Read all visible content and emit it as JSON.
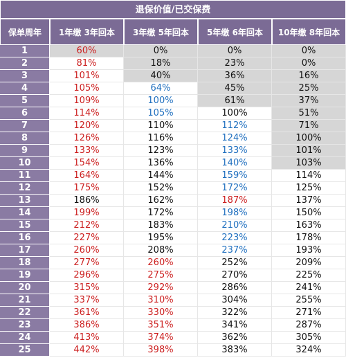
{
  "title": "退保价值/已交保费",
  "headers": [
    "保单周年",
    "1年缴 3年回本",
    "3年缴 5年回本",
    "5年缴 6年回本",
    "10年缴 8年回本"
  ],
  "colors": {
    "header_bg": "#7b6b95",
    "year_bg": "#8a7ba3",
    "gray_cell": "#d6d6d6",
    "red": "#cc1f1f",
    "blue": "#1f6fbf",
    "black": "#111111"
  },
  "rows": [
    {
      "year": "1",
      "v": [
        "60%",
        "0%",
        "0%",
        "0%"
      ],
      "c": [
        "red",
        "black",
        "black",
        "black"
      ],
      "g": [
        1,
        1,
        1,
        1
      ]
    },
    {
      "year": "2",
      "v": [
        "81%",
        "18%",
        "23%",
        "0%"
      ],
      "c": [
        "red",
        "black",
        "black",
        "black"
      ],
      "g": [
        0,
        1,
        1,
        1
      ]
    },
    {
      "year": "3",
      "v": [
        "101%",
        "40%",
        "36%",
        "16%"
      ],
      "c": [
        "red",
        "black",
        "black",
        "black"
      ],
      "g": [
        0,
        1,
        1,
        1
      ]
    },
    {
      "year": "4",
      "v": [
        "105%",
        "64%",
        "45%",
        "25%"
      ],
      "c": [
        "red",
        "blue",
        "black",
        "black"
      ],
      "g": [
        0,
        0,
        1,
        1
      ]
    },
    {
      "year": "5",
      "v": [
        "109%",
        "100%",
        "61%",
        "37%"
      ],
      "c": [
        "red",
        "blue",
        "black",
        "black"
      ],
      "g": [
        0,
        0,
        1,
        1
      ]
    },
    {
      "year": "6",
      "v": [
        "114%",
        "105%",
        "100%",
        "51%"
      ],
      "c": [
        "red",
        "blue",
        "black",
        "black"
      ],
      "g": [
        0,
        0,
        0,
        1
      ]
    },
    {
      "year": "7",
      "v": [
        "120%",
        "110%",
        "112%",
        "71%"
      ],
      "c": [
        "red",
        "black",
        "blue",
        "black"
      ],
      "g": [
        0,
        0,
        0,
        1
      ]
    },
    {
      "year": "8",
      "v": [
        "126%",
        "116%",
        "124%",
        "100%"
      ],
      "c": [
        "red",
        "black",
        "blue",
        "black"
      ],
      "g": [
        0,
        0,
        0,
        1
      ]
    },
    {
      "year": "9",
      "v": [
        "133%",
        "123%",
        "133%",
        "101%"
      ],
      "c": [
        "red",
        "black",
        "blue",
        "black"
      ],
      "g": [
        0,
        0,
        0,
        1
      ]
    },
    {
      "year": "10",
      "v": [
        "154%",
        "136%",
        "140%",
        "103%"
      ],
      "c": [
        "red",
        "black",
        "blue",
        "black"
      ],
      "g": [
        0,
        0,
        0,
        1
      ]
    },
    {
      "year": "11",
      "v": [
        "164%",
        "144%",
        "159%",
        "114%"
      ],
      "c": [
        "red",
        "black",
        "blue",
        "black"
      ],
      "g": [
        0,
        0,
        0,
        0
      ]
    },
    {
      "year": "12",
      "v": [
        "175%",
        "152%",
        "172%",
        "125%"
      ],
      "c": [
        "red",
        "black",
        "blue",
        "black"
      ],
      "g": [
        0,
        0,
        0,
        0
      ]
    },
    {
      "year": "13",
      "v": [
        "186%",
        "162%",
        "187%",
        "137%"
      ],
      "c": [
        "black",
        "black",
        "red",
        "black"
      ],
      "g": [
        0,
        0,
        0,
        0
      ]
    },
    {
      "year": "14",
      "v": [
        "199%",
        "172%",
        "198%",
        "150%"
      ],
      "c": [
        "red",
        "black",
        "blue",
        "black"
      ],
      "g": [
        0,
        0,
        0,
        0
      ]
    },
    {
      "year": "15",
      "v": [
        "212%",
        "183%",
        "210%",
        "163%"
      ],
      "c": [
        "red",
        "black",
        "blue",
        "black"
      ],
      "g": [
        0,
        0,
        0,
        0
      ]
    },
    {
      "year": "16",
      "v": [
        "227%",
        "195%",
        "223%",
        "178%"
      ],
      "c": [
        "red",
        "black",
        "blue",
        "black"
      ],
      "g": [
        0,
        0,
        0,
        0
      ]
    },
    {
      "year": "17",
      "v": [
        "260%",
        "208%",
        "237%",
        "193%"
      ],
      "c": [
        "red",
        "black",
        "blue",
        "black"
      ],
      "g": [
        0,
        0,
        0,
        0
      ]
    },
    {
      "year": "18",
      "v": [
        "277%",
        "260%",
        "252%",
        "209%"
      ],
      "c": [
        "red",
        "red",
        "black",
        "black"
      ],
      "g": [
        0,
        0,
        0,
        0
      ]
    },
    {
      "year": "19",
      "v": [
        "296%",
        "275%",
        "270%",
        "225%"
      ],
      "c": [
        "red",
        "red",
        "black",
        "black"
      ],
      "g": [
        0,
        0,
        0,
        0
      ]
    },
    {
      "year": "20",
      "v": [
        "315%",
        "292%",
        "286%",
        "241%"
      ],
      "c": [
        "red",
        "red",
        "black",
        "black"
      ],
      "g": [
        0,
        0,
        0,
        0
      ]
    },
    {
      "year": "21",
      "v": [
        "337%",
        "310%",
        "304%",
        "255%"
      ],
      "c": [
        "red",
        "red",
        "black",
        "black"
      ],
      "g": [
        0,
        0,
        0,
        0
      ]
    },
    {
      "year": "22",
      "v": [
        "361%",
        "330%",
        "322%",
        "271%"
      ],
      "c": [
        "red",
        "red",
        "black",
        "black"
      ],
      "g": [
        0,
        0,
        0,
        0
      ]
    },
    {
      "year": "23",
      "v": [
        "386%",
        "351%",
        "341%",
        "287%"
      ],
      "c": [
        "red",
        "red",
        "black",
        "black"
      ],
      "g": [
        0,
        0,
        0,
        0
      ]
    },
    {
      "year": "24",
      "v": [
        "413%",
        "374%",
        "362%",
        "305%"
      ],
      "c": [
        "red",
        "red",
        "black",
        "black"
      ],
      "g": [
        0,
        0,
        0,
        0
      ]
    },
    {
      "year": "25",
      "v": [
        "442%",
        "398%",
        "383%",
        "324%"
      ],
      "c": [
        "red",
        "red",
        "black",
        "black"
      ],
      "g": [
        0,
        0,
        0,
        0
      ]
    }
  ]
}
